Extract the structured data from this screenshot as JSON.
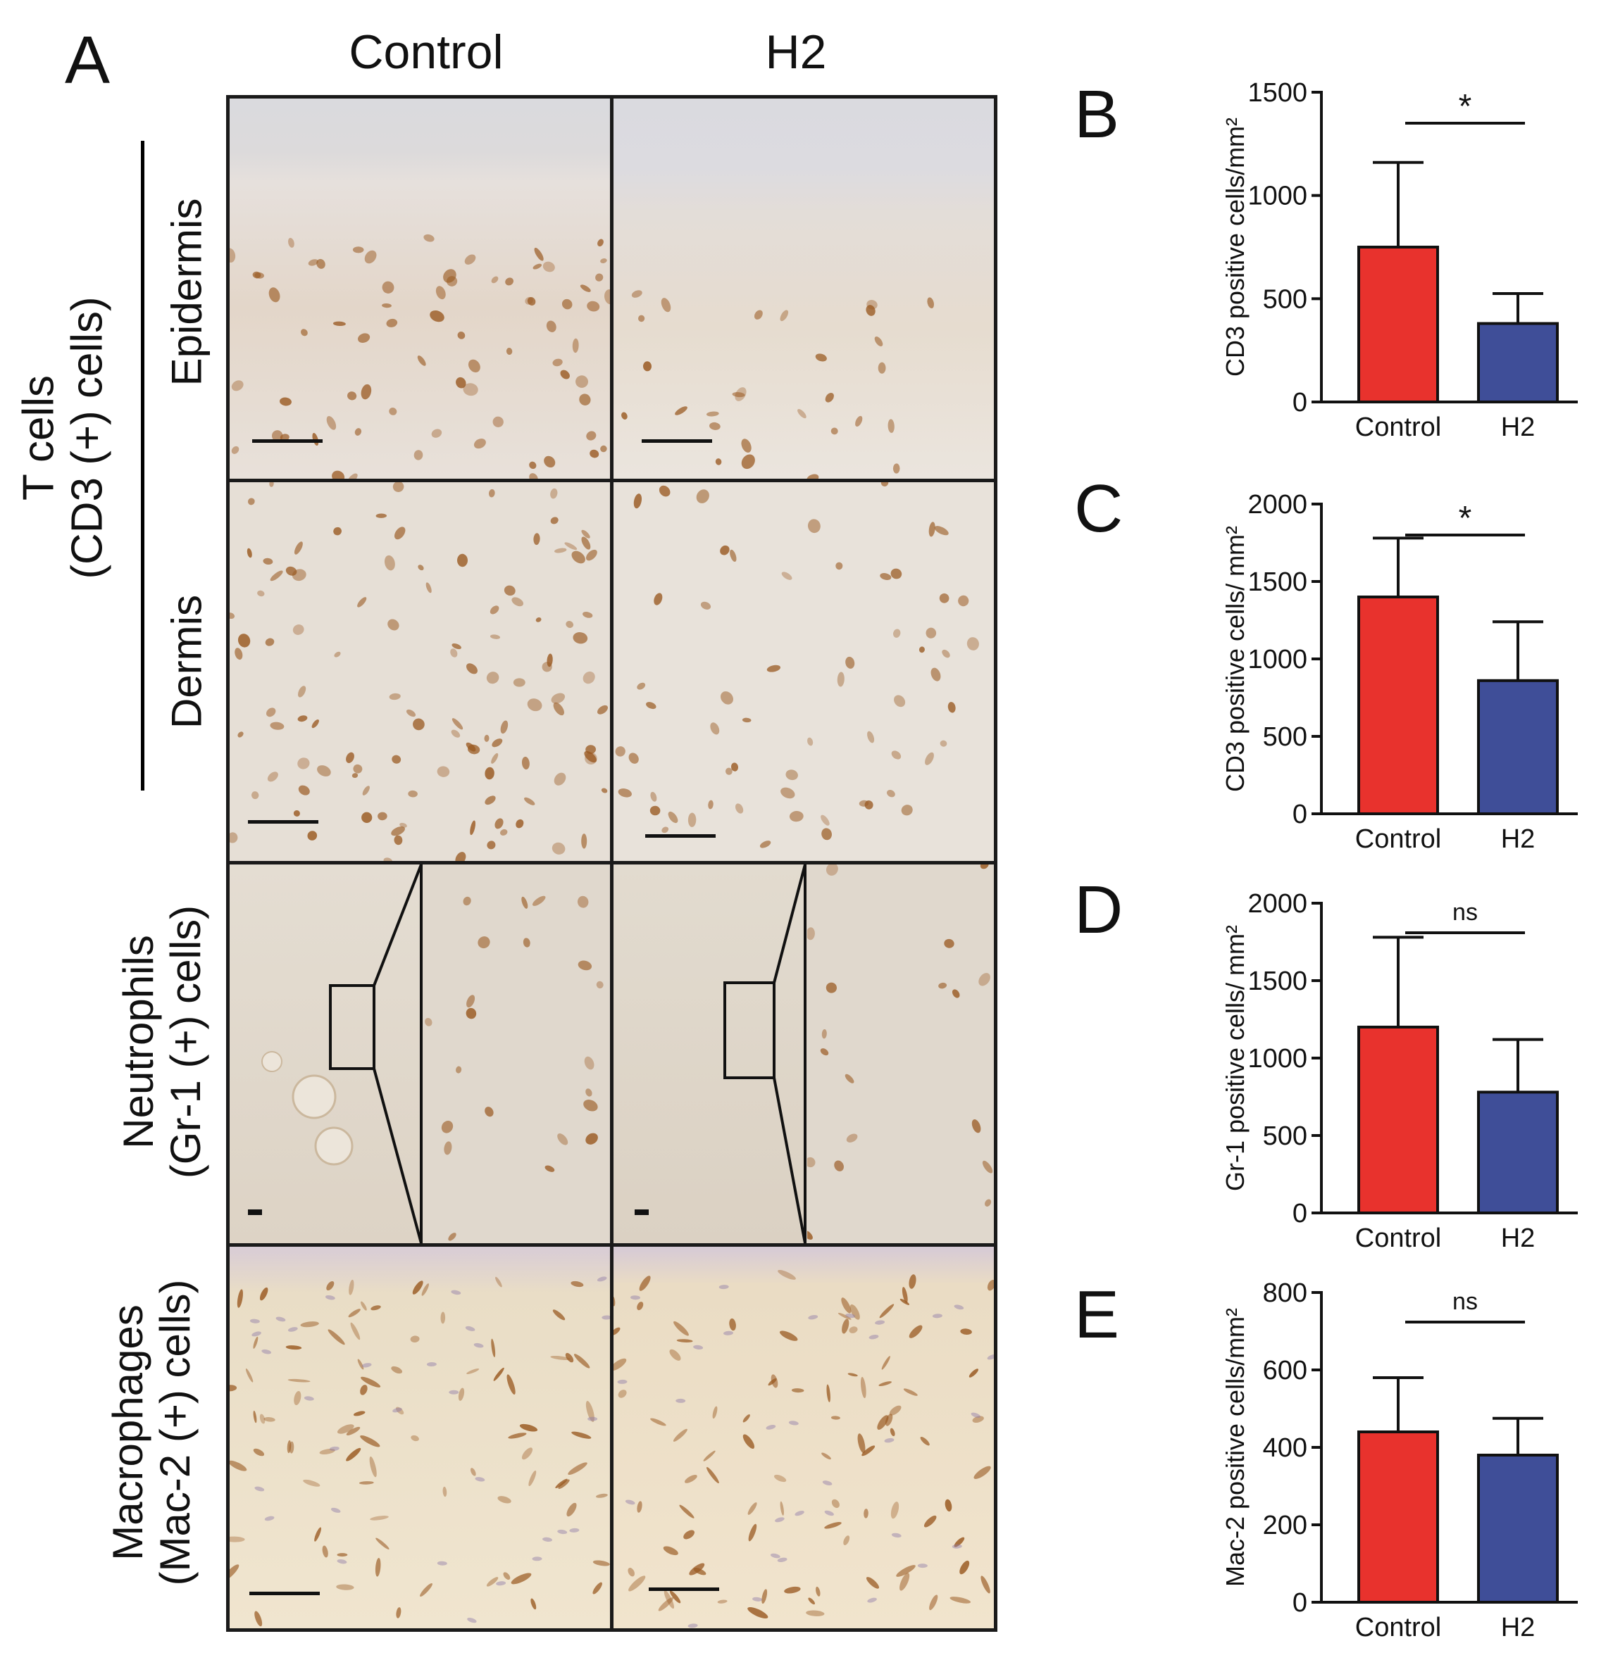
{
  "panel_letters": [
    "A",
    "B",
    "C",
    "D",
    "E"
  ],
  "column_headers": [
    "Control",
    "H2"
  ],
  "row_labels": {
    "tcells_line1": "T cells",
    "tcells_line2": "(CD3 (+) cells)",
    "epidermis": "Epidermis",
    "dermis": "Dermis",
    "neutro_line1": "Neutrophils",
    "neutro_line2": "(Gr-1 (+) cells)",
    "macro_line1": "Macrophages",
    "macro_line2": "(Mac-2 (+) cells)"
  },
  "colors": {
    "control_bar": "#e8322d",
    "h2_bar": "#3f4e98",
    "tissue_light": "#e9e3dc",
    "stain_brown": "#9a5a22"
  },
  "chart_data": [
    {
      "type": "bar",
      "panel": "B",
      "categories": [
        "Control",
        "H2"
      ],
      "values": [
        750,
        380
      ],
      "error": [
        410,
        145
      ],
      "ylabel": "CD3 positive cells/mm²",
      "ylim": [
        0,
        1500
      ],
      "yticks": [
        "0",
        "500",
        "1000",
        "1500"
      ],
      "significance": "*"
    },
    {
      "type": "bar",
      "panel": "C",
      "categories": [
        "Control",
        "H2"
      ],
      "values": [
        1400,
        860
      ],
      "error": [
        380,
        380
      ],
      "ylabel": "CD3 positive cells/ mm²",
      "ylim": [
        0,
        2000
      ],
      "yticks": [
        "0",
        "500",
        "1000",
        "1500",
        "2000"
      ],
      "significance": "*"
    },
    {
      "type": "bar",
      "panel": "D",
      "categories": [
        "Control",
        "H2"
      ],
      "values": [
        1200,
        780
      ],
      "error": [
        580,
        340
      ],
      "ylabel": "Gr-1 positive cells/ mm²",
      "ylim": [
        0,
        2000
      ],
      "yticks": [
        "0",
        "500",
        "1000",
        "1500",
        "2000"
      ],
      "significance": "ns"
    },
    {
      "type": "bar",
      "panel": "E",
      "categories": [
        "Control",
        "H2"
      ],
      "values": [
        440,
        380
      ],
      "error": [
        140,
        95
      ],
      "ylabel": "Mac-2 positive cells/mm²",
      "ylim": [
        0,
        800
      ],
      "yticks": [
        "0",
        "200",
        "400",
        "600",
        "800"
      ],
      "significance": "ns"
    }
  ]
}
